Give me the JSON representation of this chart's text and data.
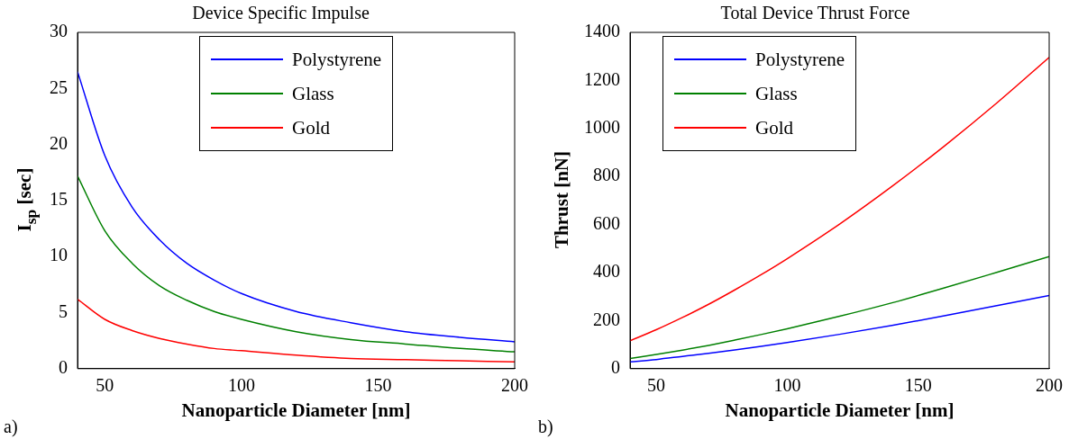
{
  "chart_data": [
    {
      "type": "line",
      "title": "Device Specific Impulse",
      "xlabel": "Nanoparticle Diameter [nm]",
      "ylabel": "I$_{sp}$ [sec]",
      "annotations": [
        "a)"
      ],
      "x": [
        40,
        50,
        60,
        70,
        80,
        90,
        100,
        120,
        140,
        160,
        180,
        200
      ],
      "xlim": [
        40,
        200
      ],
      "xticks": [
        50,
        100,
        150,
        200
      ],
      "ylim": [
        0,
        30
      ],
      "yticks": [
        0,
        5,
        10,
        15,
        20,
        25,
        30
      ],
      "legend": "top",
      "marker": "none",
      "line_style": "solid",
      "series": [
        {
          "name": "Polystyrene",
          "color": "#0000ff",
          "values": [
            26.5,
            19.0,
            14.4,
            11.5,
            9.4,
            7.9,
            6.7,
            5.1,
            4.1,
            3.3,
            2.8,
            2.4
          ]
        },
        {
          "name": "Glass",
          "color": "#008000",
          "values": [
            17.2,
            12.3,
            9.4,
            7.4,
            6.1,
            5.1,
            4.4,
            3.3,
            2.6,
            2.2,
            1.8,
            1.5
          ]
        },
        {
          "name": "Gold",
          "color": "#ff0000",
          "values": [
            6.2,
            4.4,
            3.4,
            2.7,
            2.2,
            1.8,
            1.6,
            1.2,
            0.9,
            0.8,
            0.7,
            0.6
          ]
        }
      ]
    },
    {
      "type": "line",
      "title": "Total Device Thrust Force",
      "xlabel": "Nanoparticle Diameter [nm]",
      "ylabel": "Thrust [nN]",
      "annotations": [
        "b)"
      ],
      "x": [
        40,
        50,
        60,
        70,
        80,
        90,
        100,
        120,
        140,
        160,
        180,
        200
      ],
      "xlim": [
        40,
        200
      ],
      "xticks": [
        50,
        100,
        150,
        200
      ],
      "ylim": [
        0,
        1400
      ],
      "yticks": [
        0,
        200,
        400,
        600,
        800,
        1000,
        1200,
        1400
      ],
      "legend": "top left",
      "marker": "none",
      "line_style": "solid",
      "series": [
        {
          "name": "Polystyrene",
          "color": "#0000ff",
          "values": [
            28,
            38,
            51,
            64,
            78,
            93,
            109,
            143,
            180,
            220,
            262,
            305
          ]
        },
        {
          "name": "Glass",
          "color": "#008000",
          "values": [
            42,
            59,
            77,
            97,
            119,
            142,
            166,
            218,
            274,
            336,
            401,
            467
          ]
        },
        {
          "name": "Gold",
          "color": "#ff0000",
          "values": [
            116,
            162,
            213,
            268,
            328,
            391,
            458,
            602,
            759,
            927,
            1106,
            1296
          ]
        }
      ]
    }
  ]
}
